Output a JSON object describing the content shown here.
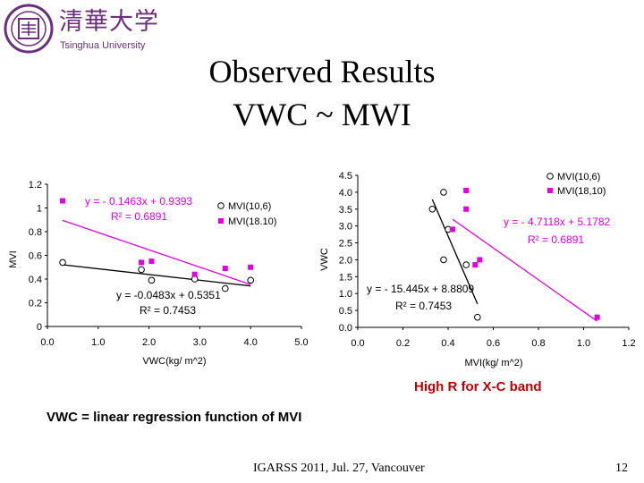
{
  "header": {
    "logo_cn": "清華大学",
    "logo_en": "Tsinghua University"
  },
  "title": {
    "line1": "Observed Results",
    "line2": "VWC ~ MWI"
  },
  "notes": {
    "red": "High R for X-C band",
    "main": "VWC = linear regression function of MVI"
  },
  "footer": {
    "conference": "IGARSS 2011, Jul. 27, Vancouver",
    "page": "12"
  },
  "colors": {
    "black_series": "#000000",
    "pink_series": "#e000e0",
    "red_note": "#c00000",
    "logo": "#6b2f7e"
  },
  "chart_data": [
    {
      "type": "scatter",
      "xlabel": "VWC(kg/ m^2)",
      "ylabel": "MVI",
      "xlim": [
        0,
        5
      ],
      "ylim": [
        0,
        1.2
      ],
      "x_ticks": [
        "0.0",
        "1.0",
        "2.0",
        "3.0",
        "4.0",
        "5.0"
      ],
      "y_ticks": [
        "0",
        "0.2",
        "0.4",
        "0.6",
        "0.8",
        "1",
        "1.2"
      ],
      "legend": "right",
      "grid": false,
      "series": [
        {
          "name": "MVI(10,6)",
          "color": "#000000",
          "marker": "open-circle",
          "points": [
            [
              0.3,
              0.54
            ],
            [
              1.85,
              0.48
            ],
            [
              2.05,
              0.39
            ],
            [
              2.9,
              0.4
            ],
            [
              3.5,
              0.32
            ],
            [
              4.0,
              0.39
            ]
          ],
          "fit": {
            "slope": -0.0483,
            "intercept": 0.5351,
            "x_range": [
              0.3,
              4.0
            ]
          },
          "equation": "y = -0.0483x + 0.5351",
          "r2": "R² = 0.7453"
        },
        {
          "name": "MVI(18.10)",
          "color": "#e000e0",
          "marker": "filled-square",
          "points": [
            [
              0.3,
              1.06
            ],
            [
              1.85,
              0.54
            ],
            [
              2.05,
              0.55
            ],
            [
              2.9,
              0.44
            ],
            [
              3.5,
              0.49
            ],
            [
              4.0,
              0.5
            ]
          ],
          "fit": {
            "slope": -0.1463,
            "intercept": 0.9393,
            "x_range": [
              0.3,
              4.0
            ]
          },
          "equation": "y = - 0.1463x + 0.9393",
          "r2": "R² = 0.6891"
        }
      ]
    },
    {
      "type": "scatter",
      "xlabel": "MVI(kg/ m^2)",
      "ylabel": "VWC",
      "xlim": [
        0,
        1.2
      ],
      "ylim": [
        0,
        4.5
      ],
      "x_ticks": [
        "0.0",
        "0.2",
        "0.4",
        "0.6",
        "0.8",
        "1.0",
        "1.2"
      ],
      "y_ticks": [
        "0.0",
        "0.5",
        "1.0",
        "1.5",
        "2.0",
        "2.5",
        "3.0",
        "3.5",
        "4.0",
        "4.5"
      ],
      "legend": "top-right",
      "grid": false,
      "series": [
        {
          "name": "MVI(10,6)",
          "color": "#000000",
          "marker": "open-circle",
          "points": [
            [
              0.33,
              3.5
            ],
            [
              0.38,
              4.0
            ],
            [
              0.4,
              2.9
            ],
            [
              0.38,
              2.0
            ],
            [
              0.48,
              1.85
            ],
            [
              0.53,
              0.3
            ]
          ],
          "fit": {
            "slope": -15.445,
            "intercept": 8.8809,
            "x_range": [
              0.33,
              0.53
            ]
          },
          "equation": "y = - 15.445x + 8.8809",
          "r2": "R² = 0.7453"
        },
        {
          "name": "MVI(18,10)",
          "color": "#e000e0",
          "marker": "filled-square",
          "points": [
            [
              0.48,
              4.05
            ],
            [
              0.48,
              3.5
            ],
            [
              0.42,
              2.9
            ],
            [
              0.54,
              2.0
            ],
            [
              0.52,
              1.85
            ],
            [
              1.06,
              0.3
            ]
          ],
          "fit": {
            "slope": -4.7118,
            "intercept": 5.1782,
            "x_range": [
              0.42,
              1.06
            ]
          },
          "equation": "y = - 4.7118x + 5.1782",
          "r2": "R² = 0.6891"
        }
      ]
    }
  ]
}
